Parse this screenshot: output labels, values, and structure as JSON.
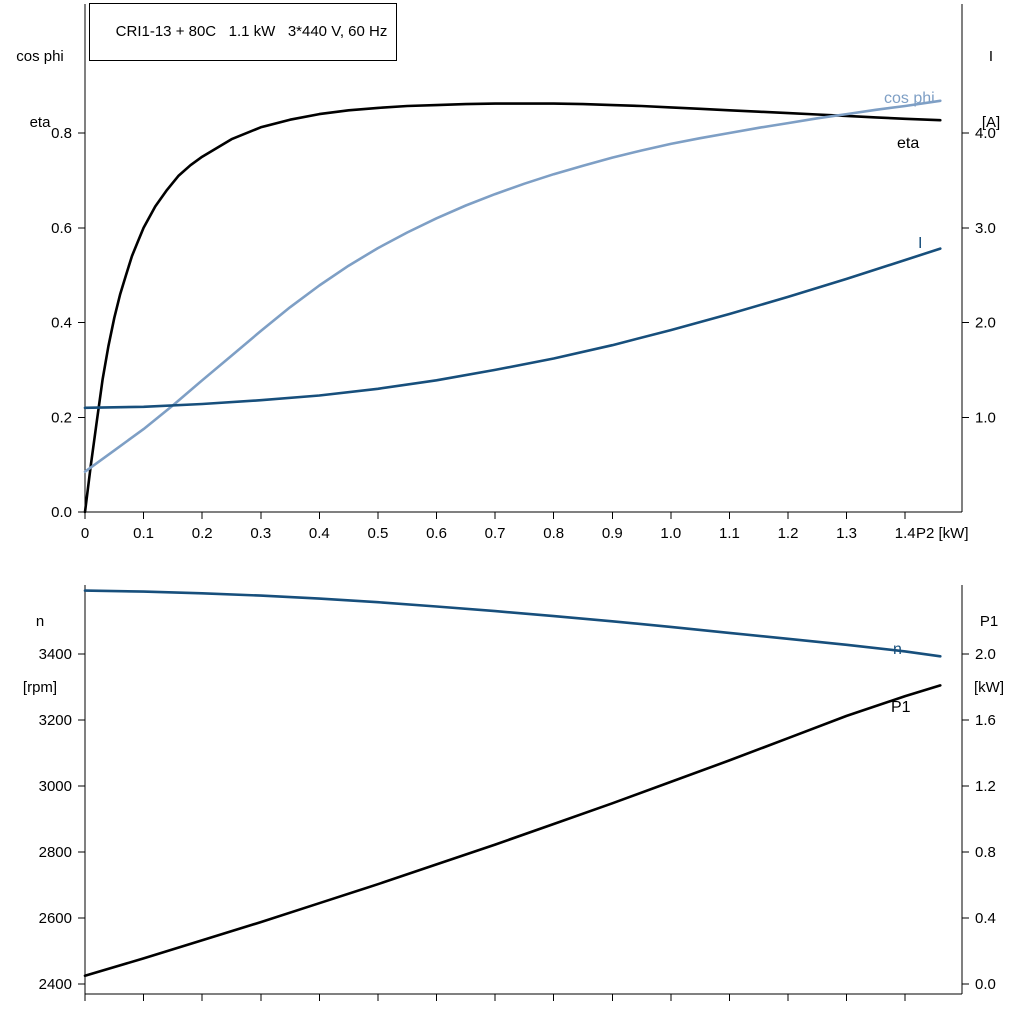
{
  "colors": {
    "black": "#000000",
    "light_blue": "#7e9fc5",
    "dark_blue": "#174f7c",
    "background": "#ffffff"
  },
  "chart_data": [
    {
      "type": "line",
      "title": "CRI1-13 + 80C   1.1 kW   3*440 V, 60 Hz",
      "x_label": "P2 [kW]",
      "y_left_header": [
        "cos phi",
        "eta"
      ],
      "y_right_header": [
        "I",
        "[A]"
      ],
      "legend_position": "curve-end-labels",
      "grid": false,
      "x_range": [
        0,
        1.497
      ],
      "y_left_range": [
        0,
        1.0723
      ],
      "y_right_range": [
        0,
        5.3615
      ],
      "x_ticks": {
        "values": [
          0,
          0.1,
          0.2,
          0.3,
          0.4,
          0.5,
          0.6,
          0.7,
          0.8,
          0.9,
          1.0,
          1.1,
          1.2,
          1.3,
          1.4
        ],
        "labels": [
          "0",
          "0.1",
          "0.2",
          "0.3",
          "0.4",
          "0.5",
          "0.6",
          "0.7",
          "0.8",
          "0.9",
          "1.0",
          "1.1",
          "1.2",
          "1.3",
          "1.4"
        ]
      },
      "y_left_ticks": {
        "values": [
          0,
          0.2,
          0.4,
          0.6,
          0.8
        ],
        "labels": [
          "0.0",
          "0.2",
          "0.4",
          "0.6",
          "0.8"
        ]
      },
      "y_right_ticks": {
        "values": [
          1,
          2,
          3,
          4
        ],
        "labels": [
          "1.0",
          "2.0",
          "3.0",
          "4.0"
        ]
      },
      "series": [
        {
          "name": "eta",
          "axis": "left",
          "color": "#000000",
          "width": 2.6,
          "label_pos": [
            897,
            148
          ],
          "points": [
            [
              0,
              0
            ],
            [
              0.01,
              0.1
            ],
            [
              0.02,
              0.19
            ],
            [
              0.03,
              0.28
            ],
            [
              0.04,
              0.35
            ],
            [
              0.05,
              0.41
            ],
            [
              0.06,
              0.46
            ],
            [
              0.07,
              0.5
            ],
            [
              0.08,
              0.54
            ],
            [
              0.09,
              0.57
            ],
            [
              0.1,
              0.6
            ],
            [
              0.12,
              0.645
            ],
            [
              0.14,
              0.68
            ],
            [
              0.16,
              0.71
            ],
            [
              0.18,
              0.732
            ],
            [
              0.2,
              0.75
            ],
            [
              0.25,
              0.787
            ],
            [
              0.3,
              0.812
            ],
            [
              0.35,
              0.828
            ],
            [
              0.4,
              0.84
            ],
            [
              0.45,
              0.848
            ],
            [
              0.5,
              0.853
            ],
            [
              0.55,
              0.857
            ],
            [
              0.6,
              0.859
            ],
            [
              0.65,
              0.861
            ],
            [
              0.7,
              0.862
            ],
            [
              0.75,
              0.862
            ],
            [
              0.8,
              0.862
            ],
            [
              0.85,
              0.861
            ],
            [
              0.9,
              0.859
            ],
            [
              0.95,
              0.857
            ],
            [
              1.0,
              0.854
            ],
            [
              1.05,
              0.851
            ],
            [
              1.1,
              0.848
            ],
            [
              1.15,
              0.845
            ],
            [
              1.2,
              0.842
            ],
            [
              1.25,
              0.839
            ],
            [
              1.3,
              0.836
            ],
            [
              1.35,
              0.833
            ],
            [
              1.4,
              0.83
            ],
            [
              1.46,
              0.827
            ]
          ]
        },
        {
          "name": "cos phi",
          "axis": "left",
          "color": "#7e9fc5",
          "width": 2.6,
          "label_pos": [
            884,
            103
          ],
          "points": [
            [
              0,
              0.085
            ],
            [
              0.05,
              0.13
            ],
            [
              0.1,
              0.175
            ],
            [
              0.15,
              0.225
            ],
            [
              0.2,
              0.278
            ],
            [
              0.25,
              0.33
            ],
            [
              0.3,
              0.382
            ],
            [
              0.35,
              0.432
            ],
            [
              0.4,
              0.478
            ],
            [
              0.45,
              0.52
            ],
            [
              0.5,
              0.557
            ],
            [
              0.55,
              0.59
            ],
            [
              0.6,
              0.62
            ],
            [
              0.65,
              0.647
            ],
            [
              0.7,
              0.671
            ],
            [
              0.75,
              0.693
            ],
            [
              0.8,
              0.713
            ],
            [
              0.85,
              0.731
            ],
            [
              0.9,
              0.748
            ],
            [
              0.95,
              0.763
            ],
            [
              1.0,
              0.777
            ],
            [
              1.05,
              0.789
            ],
            [
              1.1,
              0.8
            ],
            [
              1.15,
              0.811
            ],
            [
              1.2,
              0.821
            ],
            [
              1.25,
              0.831
            ],
            [
              1.3,
              0.84
            ],
            [
              1.35,
              0.849
            ],
            [
              1.4,
              0.857
            ],
            [
              1.46,
              0.868
            ]
          ]
        },
        {
          "name": "I",
          "axis": "right",
          "color": "#174f7c",
          "width": 2.6,
          "label_pos": [
            918,
            248
          ],
          "points": [
            [
              0,
              1.1
            ],
            [
              0.1,
              1.11
            ],
            [
              0.2,
              1.14
            ],
            [
              0.3,
              1.18
            ],
            [
              0.4,
              1.23
            ],
            [
              0.5,
              1.3
            ],
            [
              0.6,
              1.39
            ],
            [
              0.7,
              1.5
            ],
            [
              0.8,
              1.62
            ],
            [
              0.9,
              1.76
            ],
            [
              1.0,
              1.92
            ],
            [
              1.1,
              2.09
            ],
            [
              1.2,
              2.27
            ],
            [
              1.3,
              2.46
            ],
            [
              1.4,
              2.66
            ],
            [
              1.46,
              2.78
            ]
          ]
        }
      ]
    },
    {
      "type": "line",
      "title": "",
      "x_label": "",
      "y_left_header": [
        "n",
        "[rpm]"
      ],
      "y_right_header": [
        "P1",
        "[kW]"
      ],
      "legend_position": "curve-end-labels",
      "grid": false,
      "x_range": [
        0,
        1.497
      ],
      "y_left_range": [
        2369.7,
        3609.1
      ],
      "y_right_range": [
        -0.0606,
        2.4182
      ],
      "x_ticks": {
        "values": [
          0,
          0.1,
          0.2,
          0.3,
          0.4,
          0.5,
          0.6,
          0.7,
          0.8,
          0.9,
          1.0,
          1.1,
          1.2,
          1.3,
          1.4
        ],
        "labels": []
      },
      "y_left_ticks": {
        "values": [
          2400,
          2600,
          2800,
          3000,
          3200,
          3400
        ],
        "labels": [
          "2400",
          "2600",
          "2800",
          "3000",
          "3200",
          "3400"
        ]
      },
      "y_right_ticks": {
        "values": [
          0,
          0.4,
          0.8,
          1.2,
          1.6,
          2.0
        ],
        "labels": [
          "0.0",
          "0.4",
          "0.8",
          "1.2",
          "1.6",
          "2.0"
        ]
      },
      "series": [
        {
          "name": "n",
          "axis": "left",
          "color": "#174f7c",
          "width": 2.6,
          "label_pos": [
            893,
            654
          ],
          "points": [
            [
              0,
              3592
            ],
            [
              0.1,
              3589
            ],
            [
              0.2,
              3584
            ],
            [
              0.3,
              3577
            ],
            [
              0.4,
              3568
            ],
            [
              0.5,
              3557
            ],
            [
              0.6,
              3544
            ],
            [
              0.7,
              3530
            ],
            [
              0.8,
              3515
            ],
            [
              0.9,
              3499
            ],
            [
              1.0,
              3482
            ],
            [
              1.1,
              3464
            ],
            [
              1.2,
              3446
            ],
            [
              1.3,
              3428
            ],
            [
              1.4,
              3408
            ],
            [
              1.46,
              3393
            ]
          ]
        },
        {
          "name": "P1",
          "axis": "right",
          "color": "#000000",
          "width": 2.6,
          "label_pos": [
            891,
            712
          ],
          "points": [
            [
              0,
              0.05
            ],
            [
              0.1,
              0.155
            ],
            [
              0.2,
              0.265
            ],
            [
              0.3,
              0.375
            ],
            [
              0.4,
              0.49
            ],
            [
              0.5,
              0.605
            ],
            [
              0.6,
              0.725
            ],
            [
              0.7,
              0.845
            ],
            [
              0.8,
              0.97
            ],
            [
              0.9,
              1.095
            ],
            [
              1.0,
              1.225
            ],
            [
              1.1,
              1.355
            ],
            [
              1.2,
              1.49
            ],
            [
              1.3,
              1.625
            ],
            [
              1.4,
              1.745
            ],
            [
              1.46,
              1.81
            ]
          ]
        }
      ]
    }
  ]
}
